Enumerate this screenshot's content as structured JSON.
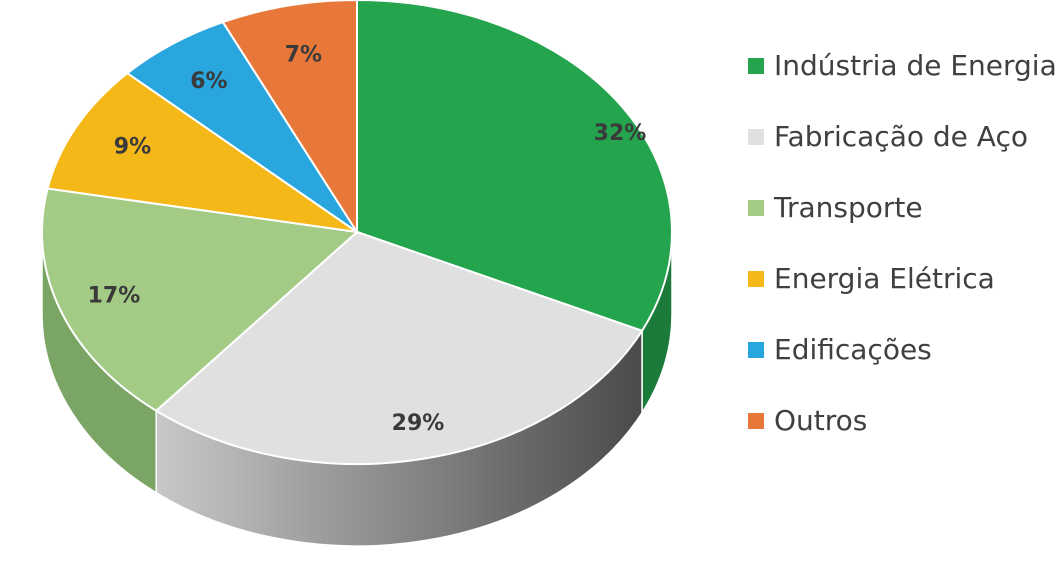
{
  "chart_data": {
    "type": "pie",
    "style": "3d",
    "legend_position": "right",
    "start_angle_deg": 0,
    "direction": "clockwise",
    "slices": [
      {
        "label": "Indústria de Energia",
        "value": 32,
        "data_label": "32%",
        "color": "#25a44e",
        "side_color": "#1c7a3a"
      },
      {
        "label": "Fabricação de Aço",
        "value": 29,
        "data_label": "29%",
        "color": "#e0e0e0",
        "side_color": "#8a8a8a"
      },
      {
        "label": "Transporte",
        "value": 17,
        "data_label": "17%",
        "color": "#a3cb86",
        "side_color": "#7ba565"
      },
      {
        "label": "Energia Elétrica",
        "value": 9,
        "data_label": "9%",
        "color": "#f5b819",
        "side_color": "#c28f0f"
      },
      {
        "label": "Edificações",
        "value": 6,
        "data_label": "6%",
        "color": "#2aa6df",
        "side_color": "#1f7fab"
      },
      {
        "label": "Outros",
        "value": 7,
        "data_label": "7%",
        "color": "#e8783a",
        "side_color": "#b55a2a"
      }
    ]
  }
}
